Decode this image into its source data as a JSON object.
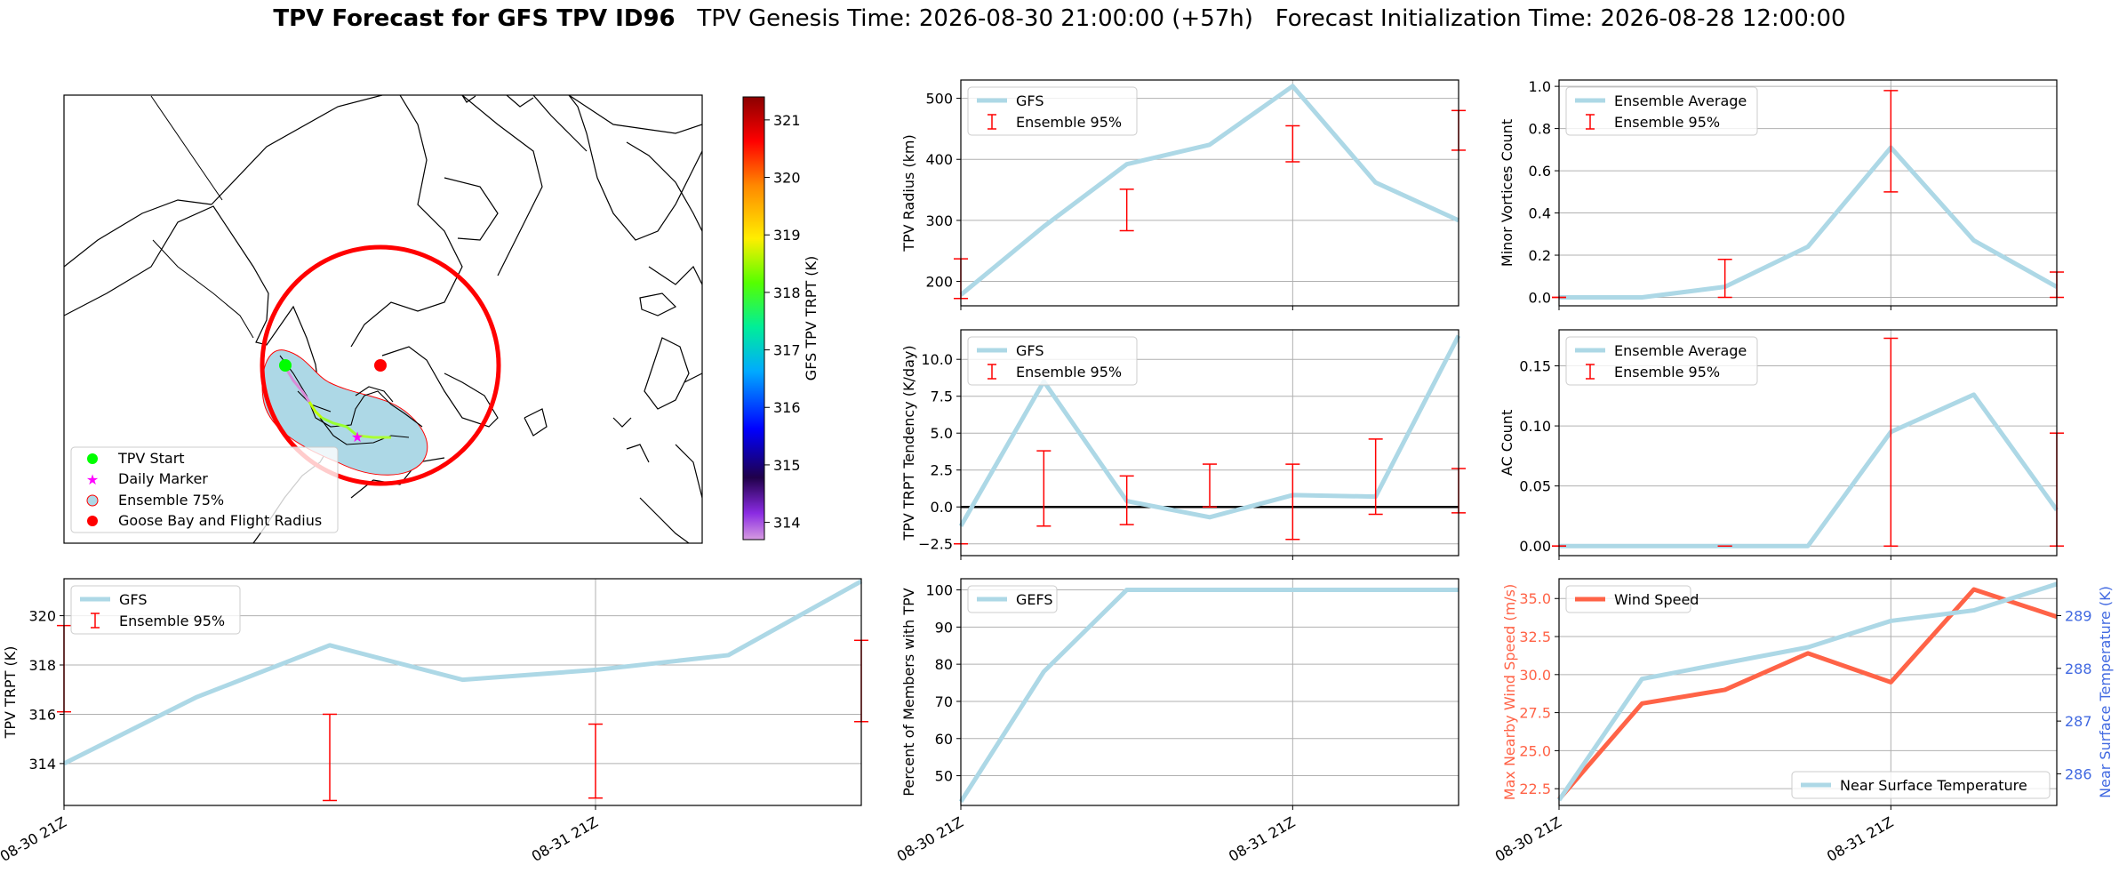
{
  "title": {
    "bold": "TPV Forecast for GFS TPV ID96",
    "rest": "   TPV Genesis Time: 2026-08-30 21:00:00 (+57h)   Forecast Initialization Time: 2026-08-28 12:00:00"
  },
  "colors": {
    "gfs_line": "#add8e6",
    "errbar": "#ff0000",
    "wind": "#ff6347",
    "temp_axis": "#4169e1",
    "goose": "#ff0000",
    "start": "#00ff00",
    "daily": "#ff00ff"
  },
  "map": {
    "colorbar": {
      "label": "GFS TPV TRPT (K)",
      "ticks": [
        314,
        315,
        316,
        317,
        318,
        319,
        320,
        321
      ],
      "range": [
        313.7,
        321.4
      ]
    },
    "legend": [
      "TPV Start",
      "Daily Marker",
      "Ensemble 75%",
      "Goose Bay and Flight Radius"
    ]
  },
  "chart_data": [
    {
      "id": "radius",
      "type": "line",
      "ylabel": "TPV Radius (km)",
      "x": [
        0,
        0.25,
        0.5,
        0.75,
        1.0,
        1.25,
        1.5
      ],
      "ylim": [
        160,
        530
      ],
      "yticks": [
        200,
        300,
        400,
        500
      ],
      "series": [
        {
          "name": "GFS",
          "values": [
            178,
            290,
            392,
            424,
            520,
            362,
            300
          ]
        }
      ],
      "errorbars": {
        "name": "Ensemble 95%",
        "x": [
          0,
          0.5,
          1.0,
          1.5
        ],
        "low": [
          172,
          283,
          396,
          415
        ],
        "high": [
          237,
          351,
          455,
          480
        ]
      },
      "xticks": [],
      "grid_x": [
        1.0
      ]
    },
    {
      "id": "minor",
      "type": "line",
      "ylabel": "Minor Vortices Count",
      "x": [
        0,
        0.25,
        0.5,
        0.75,
        1.0,
        1.25,
        1.5
      ],
      "ylim": [
        -0.04,
        1.03
      ],
      "yticks": [
        0.0,
        0.2,
        0.4,
        0.6,
        0.8,
        1.0
      ],
      "series": [
        {
          "name": "Ensemble Average",
          "values": [
            0.0,
            0.0,
            0.05,
            0.24,
            0.71,
            0.27,
            0.05
          ]
        }
      ],
      "errorbars": {
        "name": "Ensemble 95%",
        "x": [
          0,
          0.5,
          1.0,
          1.5
        ],
        "low": [
          0.0,
          0.0,
          0.5,
          0.0
        ],
        "high": [
          0.0,
          0.18,
          0.98,
          0.12
        ]
      },
      "xticks": [],
      "grid_x": [
        1.0
      ]
    },
    {
      "id": "tendency",
      "type": "line",
      "ylabel": "TPV TRPT Tendency (K/day)",
      "x": [
        0,
        0.25,
        0.5,
        0.75,
        1.0,
        1.25,
        1.5
      ],
      "ylim": [
        -3.3,
        12.0
      ],
      "yticks": [
        -2.5,
        0.0,
        2.5,
        5.0,
        7.5,
        10.0
      ],
      "series": [
        {
          "name": "GFS",
          "values": [
            -1.3,
            8.5,
            0.4,
            -0.7,
            0.8,
            0.7,
            11.6
          ]
        }
      ],
      "errorbars": {
        "name": "Ensemble 95%",
        "x": [
          0,
          0.25,
          0.5,
          0.75,
          1.0,
          1.25,
          1.5
        ],
        "low": [
          -2.5,
          -1.3,
          -1.2,
          0.0,
          -2.2,
          -0.5,
          -0.4
        ],
        "high": [
          -2.5,
          3.8,
          2.1,
          2.9,
          2.9,
          4.6,
          2.6
        ]
      },
      "hline": 0,
      "xticks": [],
      "grid_x": [
        1.0
      ]
    },
    {
      "id": "ac",
      "type": "line",
      "ylabel": "AC Count",
      "x": [
        0,
        0.25,
        0.5,
        0.75,
        1.0,
        1.25,
        1.5
      ],
      "ylim": [
        -0.008,
        0.18
      ],
      "yticks": [
        0.0,
        0.05,
        0.1,
        0.15
      ],
      "series": [
        {
          "name": "Ensemble Average",
          "values": [
            0.0,
            0.0,
            0.0,
            0.0,
            0.095,
            0.126,
            0.03
          ]
        }
      ],
      "errorbars": {
        "name": "Ensemble 95%",
        "x": [
          0,
          0.5,
          1.0,
          1.5
        ],
        "low": [
          0.0,
          0.0,
          0.0,
          0.0
        ],
        "high": [
          0.0,
          0.0,
          0.173,
          0.094
        ]
      },
      "xticks": [],
      "grid_x": [
        1.0
      ]
    },
    {
      "id": "trpt",
      "type": "line",
      "ylabel": "TPV TRPT (K)",
      "x": [
        0,
        0.25,
        0.5,
        0.75,
        1.0,
        1.25,
        1.5
      ],
      "ylim": [
        312.3,
        321.5
      ],
      "yticks": [
        314,
        316,
        318,
        320
      ],
      "series": [
        {
          "name": "GFS",
          "values": [
            314.0,
            316.7,
            318.8,
            317.4,
            317.8,
            318.4,
            321.4
          ]
        }
      ],
      "errorbars": {
        "name": "Ensemble 95%",
        "x": [
          0,
          0.5,
          1.0,
          1.5
        ],
        "low": [
          316.1,
          312.5,
          312.6,
          315.7
        ],
        "high": [
          319.6,
          316.0,
          315.6,
          319.0
        ]
      },
      "xticks": [
        "08-30 21Z",
        "08-31 21Z"
      ],
      "grid_x": [
        1.0
      ]
    },
    {
      "id": "percent",
      "type": "line",
      "ylabel": "Percent of Members with TPV",
      "x": [
        0,
        0.25,
        0.5,
        0.75,
        1.0,
        1.25,
        1.5
      ],
      "ylim": [
        42,
        103
      ],
      "yticks": [
        50,
        60,
        70,
        80,
        90,
        100
      ],
      "series": [
        {
          "name": "GEFS",
          "values": [
            43,
            78,
            100,
            100,
            100,
            100,
            100
          ]
        }
      ],
      "xticks": [
        "08-30 21Z",
        "08-31 21Z"
      ],
      "grid_x": [
        1.0
      ]
    },
    {
      "id": "wind",
      "type": "line",
      "ylabel": "Max Nearby Wind Speed (m/s)",
      "ylabel_right": "Near Surface Temperature (K)",
      "x": [
        0,
        0.25,
        0.5,
        0.75,
        1.0,
        1.25,
        1.5
      ],
      "ylim": [
        21.4,
        36.3
      ],
      "yticks": [
        22.5,
        25.0,
        27.5,
        30.0,
        32.5,
        35.0
      ],
      "ylim_right": [
        285.4,
        289.7
      ],
      "yticks_right": [
        286,
        287,
        288,
        289
      ],
      "series": [
        {
          "name": "Wind Speed",
          "values": [
            21.8,
            28.1,
            29.0,
            31.4,
            29.5,
            35.6,
            33.8
          ]
        },
        {
          "name": "Near Surface Temperature",
          "values": [
            285.5,
            287.8,
            288.1,
            288.4,
            288.9,
            289.1,
            289.6
          ]
        }
      ],
      "xticks": [
        "08-30 21Z",
        "08-31 21Z"
      ],
      "grid_x": [
        1.0
      ]
    }
  ]
}
